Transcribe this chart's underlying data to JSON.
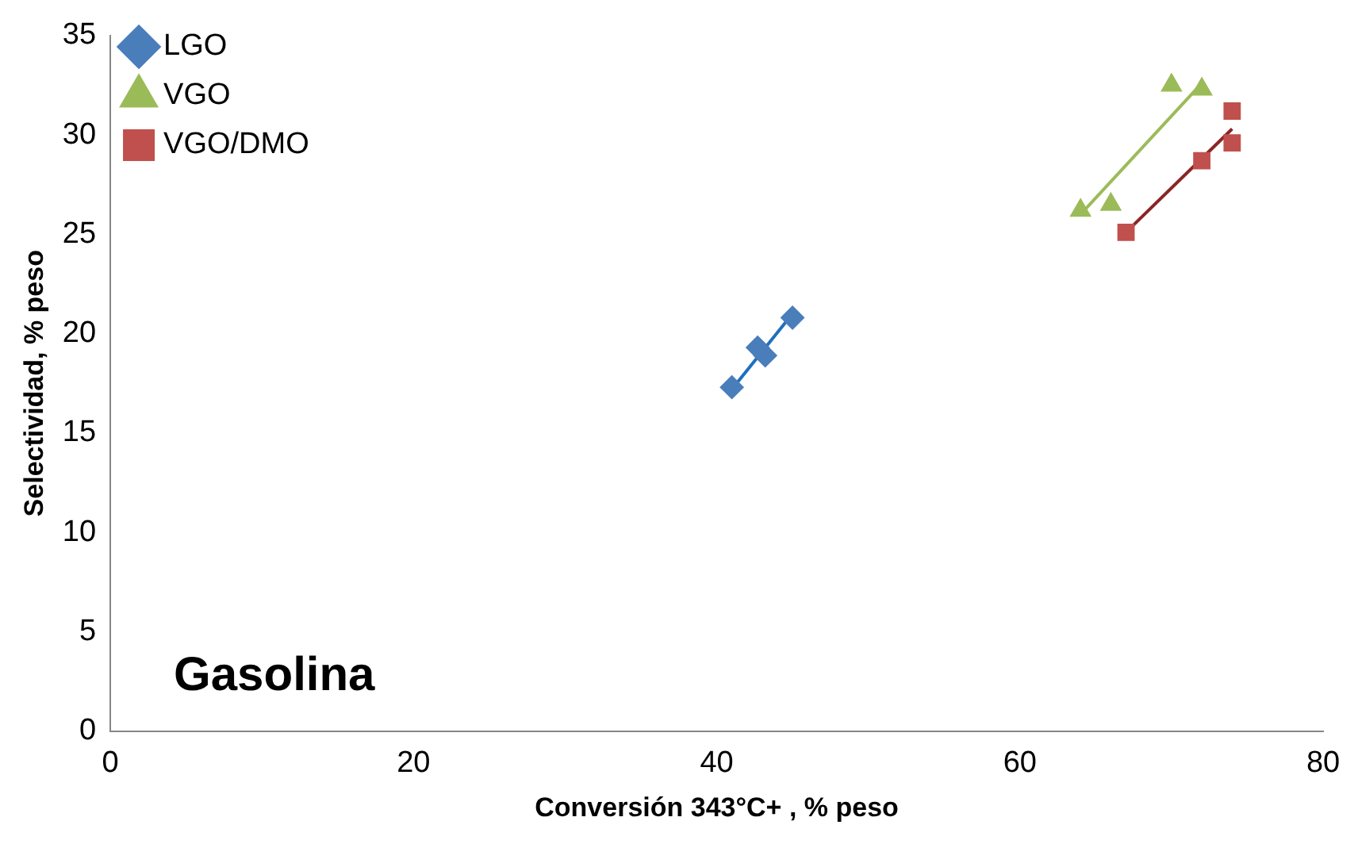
{
  "chart_data": {
    "type": "scatter",
    "xlabel": "Conversión 343°C+ , % peso",
    "ylabel": "Selectividad, % peso",
    "xlim": [
      0,
      80
    ],
    "xticks": [
      0,
      20,
      40,
      60,
      80
    ],
    "ylim": [
      0,
      35
    ],
    "yticks": [
      0,
      5,
      10,
      15,
      20,
      25,
      30,
      35
    ],
    "grid": false,
    "legend": "top left",
    "annotations": [
      "Gasolina"
    ],
    "series": [
      {
        "name": "LGO",
        "color": "#4a7ebb",
        "marker": "diamond",
        "x": [
          41,
          42.7,
          43.2,
          45
        ],
        "values": [
          17.3,
          19.3,
          18.9,
          20.8
        ]
      },
      {
        "name": "VGO",
        "color": "#9bbb59",
        "marker": "triangle",
        "x": [
          64,
          66,
          70,
          72
        ],
        "values": [
          26.2,
          26.5,
          32.5,
          32.3
        ]
      },
      {
        "name": "VGO/DMO",
        "color": "#c0504d",
        "marker": "square",
        "x": [
          67,
          72,
          74,
          74
        ],
        "values": [
          25.1,
          28.7,
          31.2,
          29.6
        ]
      },
      {
        "type": "line",
        "color": "#1f6fc0",
        "marker": "none",
        "x": [
          41,
          45
        ],
        "values": [
          17.2,
          21.0
        ]
      },
      {
        "type": "line",
        "color": "#9bbb59",
        "marker": "none",
        "x": [
          64,
          72
        ],
        "values": [
          26.0,
          32.6
        ]
      },
      {
        "type": "line",
        "color": "#8b2525",
        "marker": "none",
        "x": [
          67,
          74
        ],
        "values": [
          25.1,
          30.3
        ]
      }
    ]
  }
}
